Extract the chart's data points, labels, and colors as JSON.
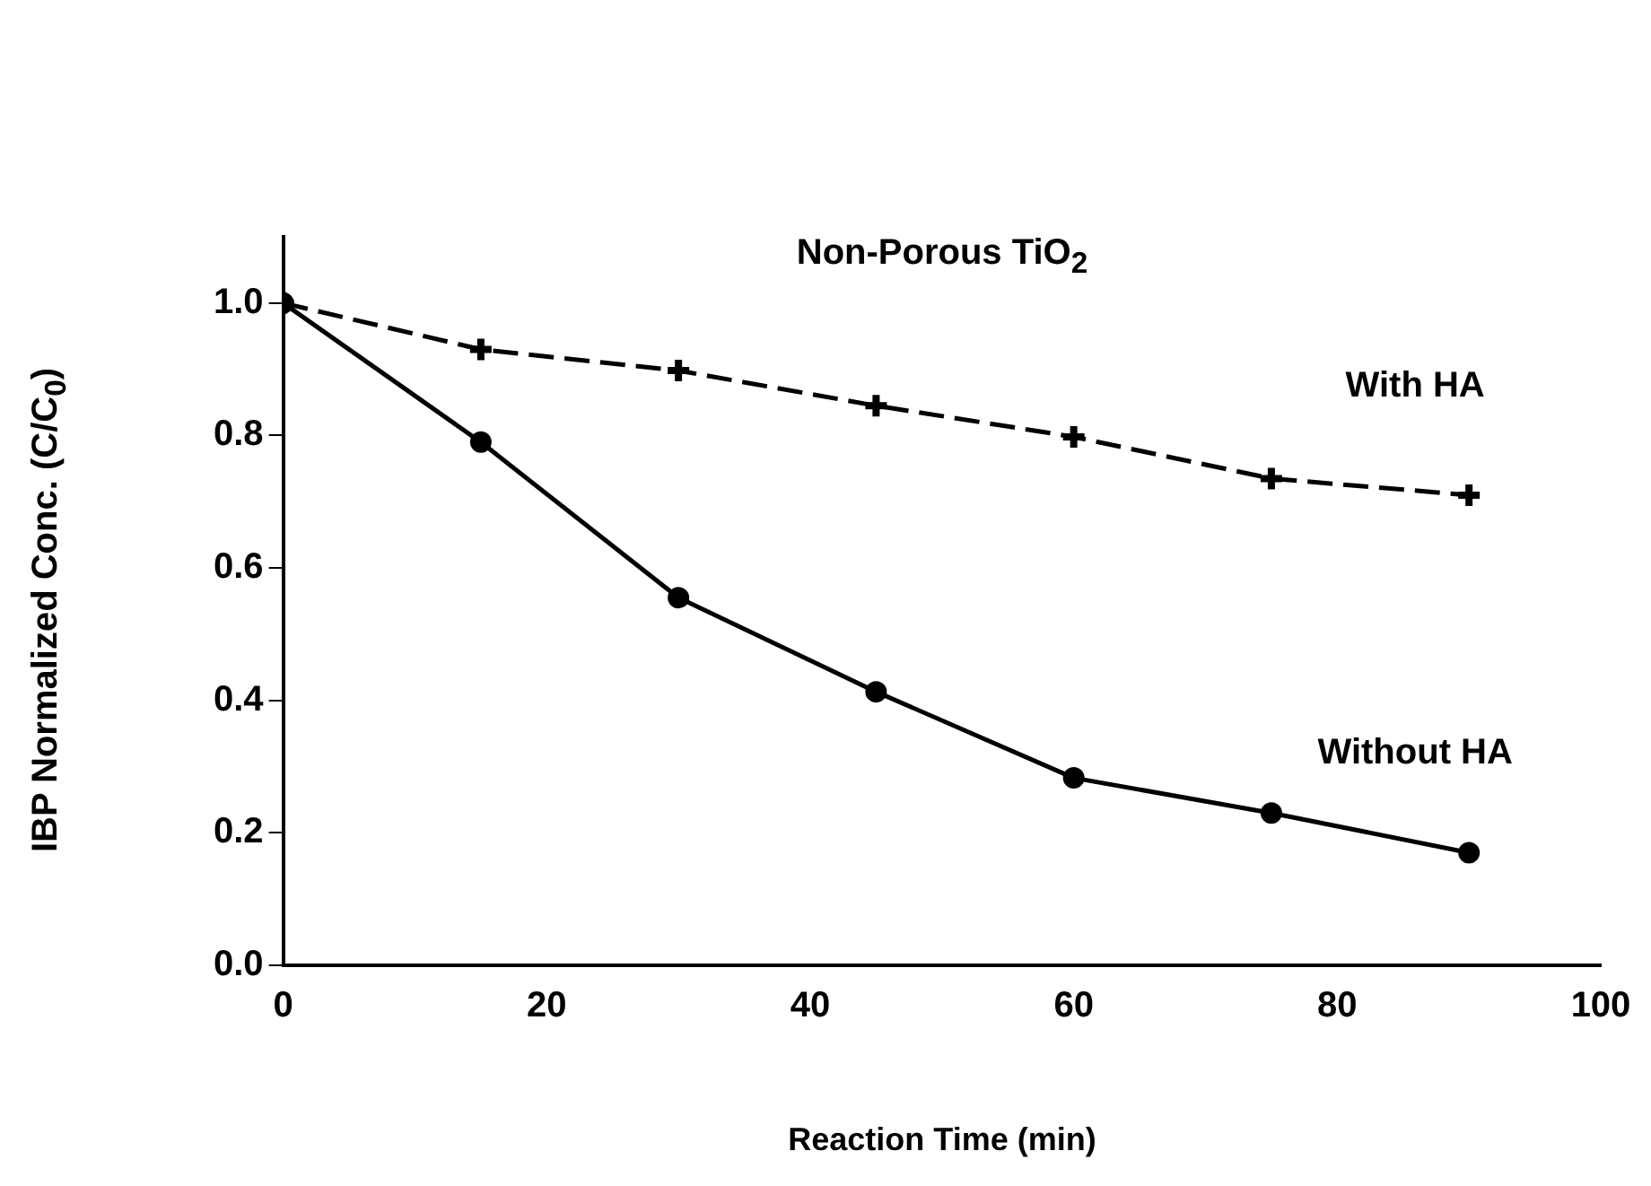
{
  "chart_data": {
    "type": "line",
    "title": "Non-Porous TiO$_{2}$",
    "xlabel": "Reaction Time (min)",
    "ylabel": "IBP Normalized Conc. (C/C$_{0}$)",
    "x": [
      0,
      15,
      30,
      45,
      60,
      75,
      90
    ],
    "series": [
      {
        "name": "Without HA",
        "color": "#000000",
        "marker": "circle",
        "line_style": "solid",
        "values": [
          1.0,
          0.79,
          0.555,
          0.413,
          0.283,
          0.23,
          0.17
        ]
      },
      {
        "name": "With HA",
        "color": "#000000",
        "marker": "cross",
        "line_style": "dashed",
        "values": [
          1.0,
          0.93,
          0.898,
          0.845,
          0.798,
          0.735,
          0.71
        ]
      }
    ],
    "xlim": [
      0,
      100
    ],
    "xticks": [
      0,
      20,
      40,
      60,
      80,
      100
    ],
    "ylim": [
      0,
      1.1
    ],
    "yticks": [
      {
        "value": 0,
        "label": "0.0"
      },
      {
        "value": 0.2,
        "label": "0.2"
      },
      {
        "value": 0.4,
        "label": "0.4"
      },
      {
        "value": 0.6,
        "label": "0.6"
      },
      {
        "value": 0.8,
        "label": "0.8"
      },
      {
        "value": 1,
        "label": "1.0"
      }
    ],
    "grid": false,
    "legend": false
  }
}
